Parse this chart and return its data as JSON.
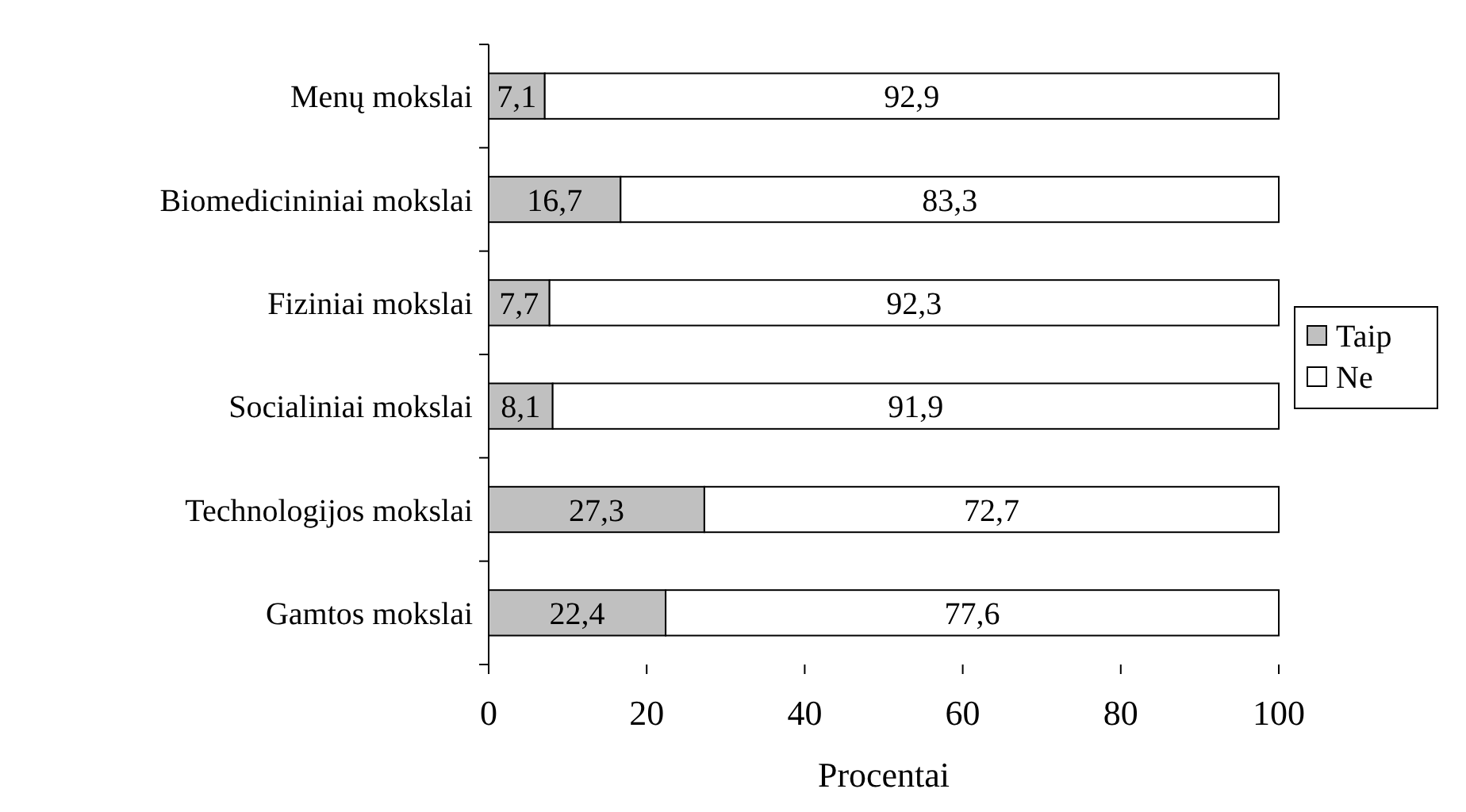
{
  "chart_data": {
    "type": "bar",
    "orientation": "horizontal",
    "stacked": true,
    "xlabel": "Procentai",
    "categories": [
      "Menų mokslai",
      "Biomedicininiai mokslai",
      "Fiziniai mokslai",
      "Socialiniai mokslai",
      "Technologijos mokslai",
      "Gamtos mokslai"
    ],
    "series": [
      {
        "name": "Taip",
        "color": "#c0c0c0",
        "values": [
          7.1,
          16.7,
          7.7,
          8.1,
          27.3,
          22.4
        ],
        "value_labels": [
          "7,1",
          "16,7",
          "7,7",
          "8,1",
          "27,3",
          "22,4"
        ]
      },
      {
        "name": "Ne",
        "color": "#ffffff",
        "values": [
          92.9,
          83.3,
          92.3,
          91.9,
          72.7,
          77.6
        ],
        "value_labels": [
          "92,9",
          "83,3",
          "92,3",
          "91,9",
          "72,7",
          "77,6"
        ]
      }
    ],
    "xlim": [
      0,
      100
    ],
    "xticks": [
      0,
      20,
      40,
      60,
      80,
      100
    ],
    "grid": false,
    "legend": "right"
  }
}
